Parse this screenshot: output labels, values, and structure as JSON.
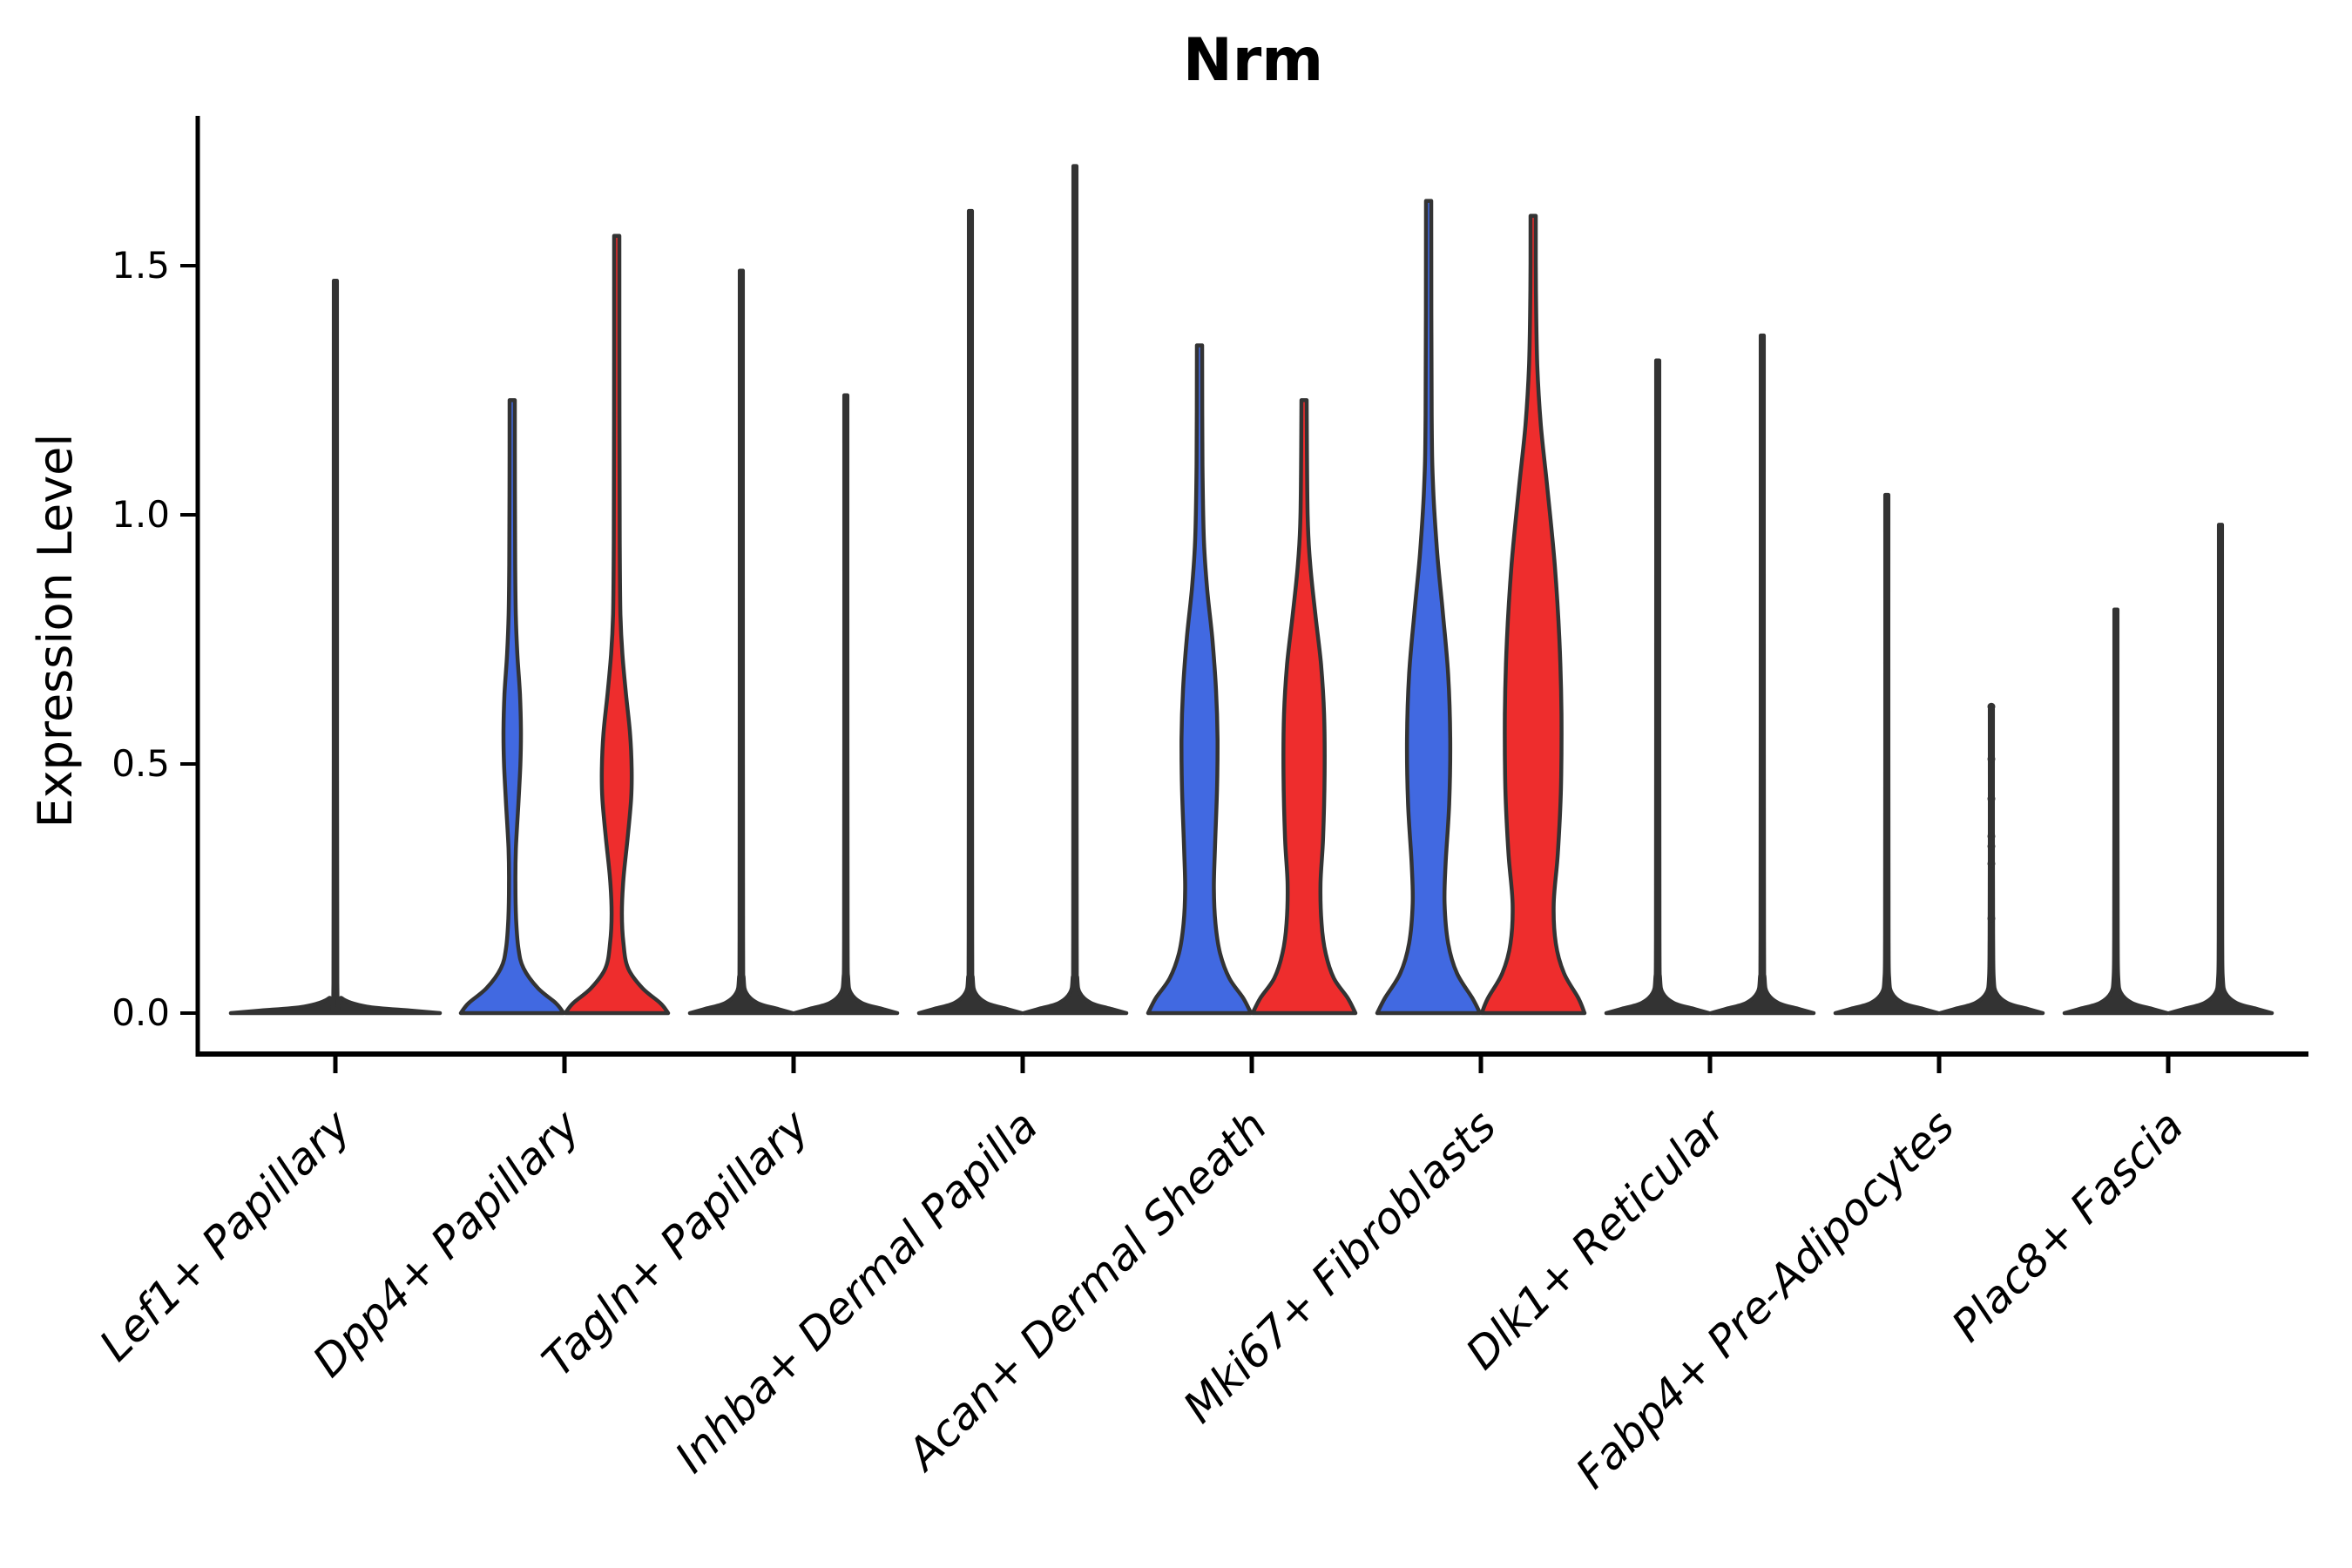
{
  "chart_data": {
    "type": "violin",
    "title": "Nrm",
    "ylabel": "Expression Level",
    "xlabel": "",
    "legend_position": "none",
    "grid": false,
    "ylim": [
      -0.05,
      1.77
    ],
    "yticks": [
      0,
      0.5,
      1.0,
      1.5
    ],
    "ytick_labels": [
      "0.0",
      "0.5",
      "1.0",
      "1.5"
    ],
    "categories": [
      "Lef1+ Papillary",
      "Dpp4+ Papillary",
      "Tagln+ Papillary",
      "Inhba+ Dermal Papilla",
      "Acan+ Dermal Sheath",
      "Mki67+ Fibroblasts",
      "Dlk1+ Reticular",
      "Fabp4+ Pre-Adipocytes",
      "Plac8+ Fascia"
    ],
    "series_colors": {
      "blue": "#4169E1",
      "red": "#EE2D2D"
    },
    "outline_color": "#333333",
    "violins": [
      {
        "category": "Lef1+ Papillary",
        "group": 0,
        "side": "single",
        "color": "none",
        "shape": "flat",
        "max_expression": 1.47,
        "width_profile": [
          [
            0,
            1
          ],
          [
            0.005,
            0.72
          ],
          [
            0.013,
            0.3
          ],
          [
            0.03,
            0.06
          ],
          [
            0.06,
            0.018
          ],
          [
            0.7,
            0.016
          ],
          [
            1.47,
            0.015
          ]
        ]
      },
      {
        "category": "Dpp4+ Papillary",
        "group": 1,
        "side": "left",
        "color": "blue",
        "shape": "body",
        "max_expression": 1.23,
        "width_profile": [
          [
            0,
            1
          ],
          [
            0.02,
            0.85
          ],
          [
            0.05,
            0.5
          ],
          [
            0.09,
            0.22
          ],
          [
            0.13,
            0.12
          ],
          [
            0.19,
            0.075
          ],
          [
            0.26,
            0.062
          ],
          [
            0.33,
            0.072
          ],
          [
            0.42,
            0.12
          ],
          [
            0.5,
            0.16
          ],
          [
            0.57,
            0.17
          ],
          [
            0.64,
            0.15
          ],
          [
            0.72,
            0.1
          ],
          [
            0.8,
            0.07
          ],
          [
            0.9,
            0.058
          ],
          [
            1.05,
            0.052
          ],
          [
            1.23,
            0.05
          ]
        ]
      },
      {
        "category": "Dpp4+ Papillary",
        "group": 1,
        "side": "right",
        "color": "red",
        "shape": "body",
        "max_expression": 1.56,
        "width_profile": [
          [
            0,
            1
          ],
          [
            0.02,
            0.85
          ],
          [
            0.05,
            0.5
          ],
          [
            0.09,
            0.22
          ],
          [
            0.14,
            0.13
          ],
          [
            0.2,
            0.1
          ],
          [
            0.27,
            0.13
          ],
          [
            0.35,
            0.21
          ],
          [
            0.43,
            0.28
          ],
          [
            0.49,
            0.29
          ],
          [
            0.56,
            0.26
          ],
          [
            0.64,
            0.18
          ],
          [
            0.72,
            0.11
          ],
          [
            0.8,
            0.072
          ],
          [
            0.95,
            0.058
          ],
          [
            1.2,
            0.052
          ],
          [
            1.56,
            0.05
          ]
        ]
      },
      {
        "category": "Tagln+ Papillary",
        "group": 2,
        "side": "left",
        "color": "blue",
        "shape": "flat",
        "max_expression": 1.49,
        "width_profile": [
          [
            0,
            1
          ],
          [
            0.008,
            0.72
          ],
          [
            0.02,
            0.32
          ],
          [
            0.04,
            0.1
          ],
          [
            0.07,
            0.045
          ],
          [
            0.15,
            0.034
          ],
          [
            0.75,
            0.03
          ],
          [
            1.49,
            0.03
          ]
        ]
      },
      {
        "category": "Tagln+ Papillary",
        "group": 2,
        "side": "right",
        "color": "red",
        "shape": "flat",
        "max_expression": 1.24,
        "width_profile": [
          [
            0,
            1
          ],
          [
            0.008,
            0.72
          ],
          [
            0.02,
            0.32
          ],
          [
            0.04,
            0.1
          ],
          [
            0.07,
            0.045
          ],
          [
            0.15,
            0.034
          ],
          [
            0.62,
            0.03
          ],
          [
            1.24,
            0.03
          ]
        ]
      },
      {
        "category": "Inhba+ Dermal Papilla",
        "group": 3,
        "side": "left",
        "color": "blue",
        "shape": "flat",
        "max_expression": 1.61,
        "width_profile": [
          [
            0,
            1
          ],
          [
            0.008,
            0.72
          ],
          [
            0.02,
            0.32
          ],
          [
            0.04,
            0.1
          ],
          [
            0.07,
            0.045
          ],
          [
            0.15,
            0.034
          ],
          [
            0.8,
            0.03
          ],
          [
            1.61,
            0.03
          ]
        ]
      },
      {
        "category": "Inhba+ Dermal Papilla",
        "group": 3,
        "side": "right",
        "color": "red",
        "shape": "flat",
        "max_expression": 1.7,
        "width_profile": [
          [
            0,
            1
          ],
          [
            0.008,
            0.72
          ],
          [
            0.02,
            0.32
          ],
          [
            0.04,
            0.1
          ],
          [
            0.07,
            0.045
          ],
          [
            0.15,
            0.034
          ],
          [
            0.85,
            0.03
          ],
          [
            1.7,
            0.03
          ]
        ]
      },
      {
        "category": "Acan+ Dermal Sheath",
        "group": 4,
        "side": "left",
        "color": "blue",
        "shape": "body",
        "max_expression": 1.34,
        "width_profile": [
          [
            0,
            1
          ],
          [
            0.03,
            0.85
          ],
          [
            0.07,
            0.58
          ],
          [
            0.12,
            0.4
          ],
          [
            0.18,
            0.31
          ],
          [
            0.25,
            0.28
          ],
          [
            0.33,
            0.3
          ],
          [
            0.45,
            0.34
          ],
          [
            0.55,
            0.35
          ],
          [
            0.65,
            0.32
          ],
          [
            0.75,
            0.25
          ],
          [
            0.85,
            0.15
          ],
          [
            0.95,
            0.085
          ],
          [
            1.1,
            0.058
          ],
          [
            1.34,
            0.05
          ]
        ]
      },
      {
        "category": "Acan+ Dermal Sheath",
        "group": 4,
        "side": "right",
        "color": "red",
        "shape": "body",
        "max_expression": 1.23,
        "width_profile": [
          [
            0,
            1
          ],
          [
            0.03,
            0.85
          ],
          [
            0.07,
            0.58
          ],
          [
            0.12,
            0.42
          ],
          [
            0.18,
            0.34
          ],
          [
            0.26,
            0.32
          ],
          [
            0.35,
            0.37
          ],
          [
            0.48,
            0.4
          ],
          [
            0.6,
            0.39
          ],
          [
            0.7,
            0.33
          ],
          [
            0.8,
            0.22
          ],
          [
            0.9,
            0.12
          ],
          [
            1.0,
            0.07
          ],
          [
            1.23,
            0.05
          ]
        ]
      },
      {
        "category": "Mki67+ Fibroblasts",
        "group": 5,
        "side": "left",
        "color": "blue",
        "shape": "body",
        "max_expression": 1.63,
        "width_profile": [
          [
            0,
            1
          ],
          [
            0.03,
            0.85
          ],
          [
            0.08,
            0.55
          ],
          [
            0.14,
            0.38
          ],
          [
            0.22,
            0.31
          ],
          [
            0.3,
            0.33
          ],
          [
            0.42,
            0.4
          ],
          [
            0.55,
            0.42
          ],
          [
            0.68,
            0.38
          ],
          [
            0.8,
            0.28
          ],
          [
            0.92,
            0.17
          ],
          [
            1.05,
            0.09
          ],
          [
            1.2,
            0.06
          ],
          [
            1.63,
            0.05
          ]
        ]
      },
      {
        "category": "Mki67+ Fibroblasts",
        "group": 5,
        "side": "right",
        "color": "red",
        "shape": "body",
        "max_expression": 1.6,
        "width_profile": [
          [
            0,
            1
          ],
          [
            0.03,
            0.88
          ],
          [
            0.08,
            0.6
          ],
          [
            0.14,
            0.44
          ],
          [
            0.22,
            0.4
          ],
          [
            0.32,
            0.48
          ],
          [
            0.45,
            0.54
          ],
          [
            0.6,
            0.55
          ],
          [
            0.75,
            0.51
          ],
          [
            0.9,
            0.42
          ],
          [
            1.05,
            0.28
          ],
          [
            1.18,
            0.15
          ],
          [
            1.3,
            0.08
          ],
          [
            1.45,
            0.055
          ],
          [
            1.6,
            0.05
          ]
        ]
      },
      {
        "category": "Dlk1+ Reticular",
        "group": 6,
        "side": "left",
        "color": "blue",
        "shape": "flat",
        "max_expression": 1.31,
        "width_profile": [
          [
            0,
            1
          ],
          [
            0.008,
            0.72
          ],
          [
            0.02,
            0.32
          ],
          [
            0.04,
            0.1
          ],
          [
            0.07,
            0.045
          ],
          [
            0.15,
            0.034
          ],
          [
            0.65,
            0.03
          ],
          [
            1.31,
            0.03
          ]
        ]
      },
      {
        "category": "Dlk1+ Reticular",
        "group": 6,
        "side": "right",
        "color": "red",
        "shape": "flat",
        "max_expression": 1.36,
        "width_profile": [
          [
            0,
            1
          ],
          [
            0.008,
            0.72
          ],
          [
            0.02,
            0.32
          ],
          [
            0.04,
            0.1
          ],
          [
            0.07,
            0.045
          ],
          [
            0.15,
            0.034
          ],
          [
            0.68,
            0.03
          ],
          [
            1.36,
            0.03
          ]
        ]
      },
      {
        "category": "Fabp4+ Pre-Adipocytes",
        "group": 7,
        "side": "left",
        "color": "blue",
        "shape": "flat",
        "max_expression": 1.04,
        "width_profile": [
          [
            0,
            1
          ],
          [
            0.008,
            0.72
          ],
          [
            0.02,
            0.32
          ],
          [
            0.04,
            0.1
          ],
          [
            0.07,
            0.045
          ],
          [
            0.15,
            0.034
          ],
          [
            0.52,
            0.03
          ],
          [
            1.04,
            0.03
          ]
        ]
      },
      {
        "category": "Fabp4+ Pre-Adipocytes",
        "group": 7,
        "side": "right",
        "color": "red",
        "shape": "flat",
        "max_expression": 0.61,
        "width_profile": [
          [
            0,
            1
          ],
          [
            0.008,
            0.72
          ],
          [
            0.02,
            0.32
          ],
          [
            0.04,
            0.1
          ],
          [
            0.07,
            0.045
          ],
          [
            0.15,
            0.034
          ],
          [
            0.3,
            0.03
          ],
          [
            0.61,
            0.03
          ]
        ],
        "points": [
          0.615,
          0.51,
          0.43,
          0.355,
          0.335,
          0.3,
          0.19
        ]
      },
      {
        "category": "Plac8+ Fascia",
        "group": 8,
        "side": "left",
        "color": "blue",
        "shape": "flat",
        "max_expression": 0.81,
        "width_profile": [
          [
            0,
            1
          ],
          [
            0.008,
            0.72
          ],
          [
            0.02,
            0.32
          ],
          [
            0.04,
            0.1
          ],
          [
            0.07,
            0.045
          ],
          [
            0.15,
            0.034
          ],
          [
            0.4,
            0.03
          ],
          [
            0.81,
            0.03
          ]
        ]
      },
      {
        "category": "Plac8+ Fascia",
        "group": 8,
        "side": "right",
        "color": "red",
        "shape": "flat",
        "max_expression": 0.98,
        "width_profile": [
          [
            0,
            1
          ],
          [
            0.008,
            0.72
          ],
          [
            0.02,
            0.32
          ],
          [
            0.04,
            0.1
          ],
          [
            0.07,
            0.045
          ],
          [
            0.15,
            0.034
          ],
          [
            0.49,
            0.03
          ],
          [
            0.98,
            0.03
          ]
        ]
      }
    ]
  }
}
